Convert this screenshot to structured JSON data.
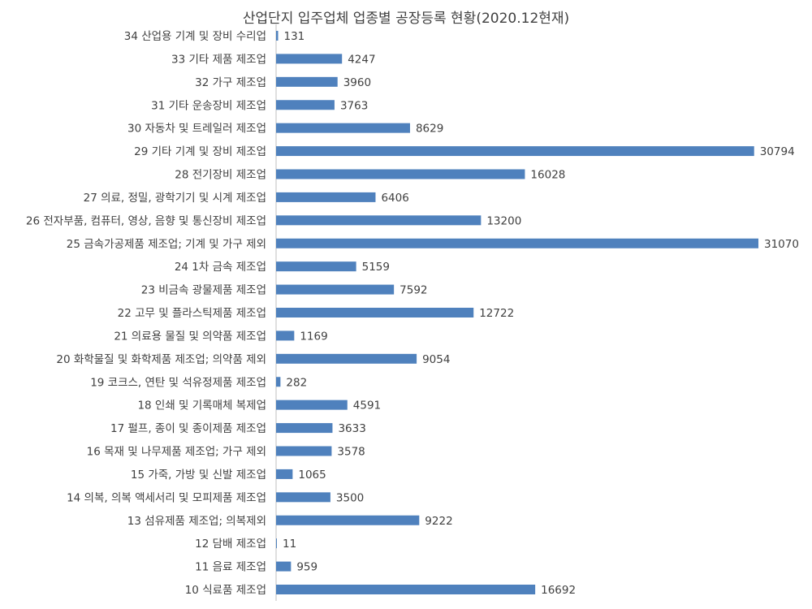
{
  "chart_data": {
    "type": "bar",
    "orientation": "horizontal",
    "title": "산업단지 입주업체 업종별 공장등록 현황(2020.12현재)",
    "categories": [
      "34 산업용 기계 및 장비 수리업",
      "33 기타 제품 제조업",
      "32 가구 제조업",
      "31 기타 운송장비 제조업",
      "30 자동차 및 트레일러 제조업",
      "29 기타 기계 및 장비 제조업",
      "28 전기장비 제조업",
      "27 의료, 정밀, 광학기기 및 시계 제조업",
      "26 전자부품, 컴퓨터, 영상, 음향 및 통신장비 제조업",
      "25 금속가공제품 제조업; 기계 및 가구 제외",
      "24 1차 금속 제조업",
      "23 비금속 광물제품 제조업",
      "22 고무 및 플라스틱제품 제조업",
      "21 의료용 물질 및 의약품 제조업",
      "20 화학물질 및 화학제품 제조업; 의약품 제외",
      "19 코크스, 연탄 및 석유정제품 제조업",
      "18 인쇄 및 기록매체 복제업",
      "17 펄프, 종이 및 종이제품 제조업",
      "16 목재 및 나무제품 제조업; 가구 제외",
      "15 가죽, 가방 및 신발 제조업",
      "14 의복, 의복 액세서리 및 모피제품 제조업",
      "13 섬유제품 제조업; 의복제외",
      "12 담배 제조업",
      "11 음료 제조업",
      "10 식료품 제조업"
    ],
    "values": [
      131,
      4247,
      3960,
      3763,
      8629,
      30794,
      16028,
      6406,
      13200,
      31070,
      5159,
      7592,
      12722,
      1169,
      9054,
      282,
      4591,
      3633,
      3578,
      1065,
      3500,
      9222,
      11,
      959,
      16692
    ],
    "xlim": [
      0,
      35000
    ],
    "grid": false,
    "legend": "none",
    "data_labels": true,
    "bar_color": "#4f81bd"
  }
}
